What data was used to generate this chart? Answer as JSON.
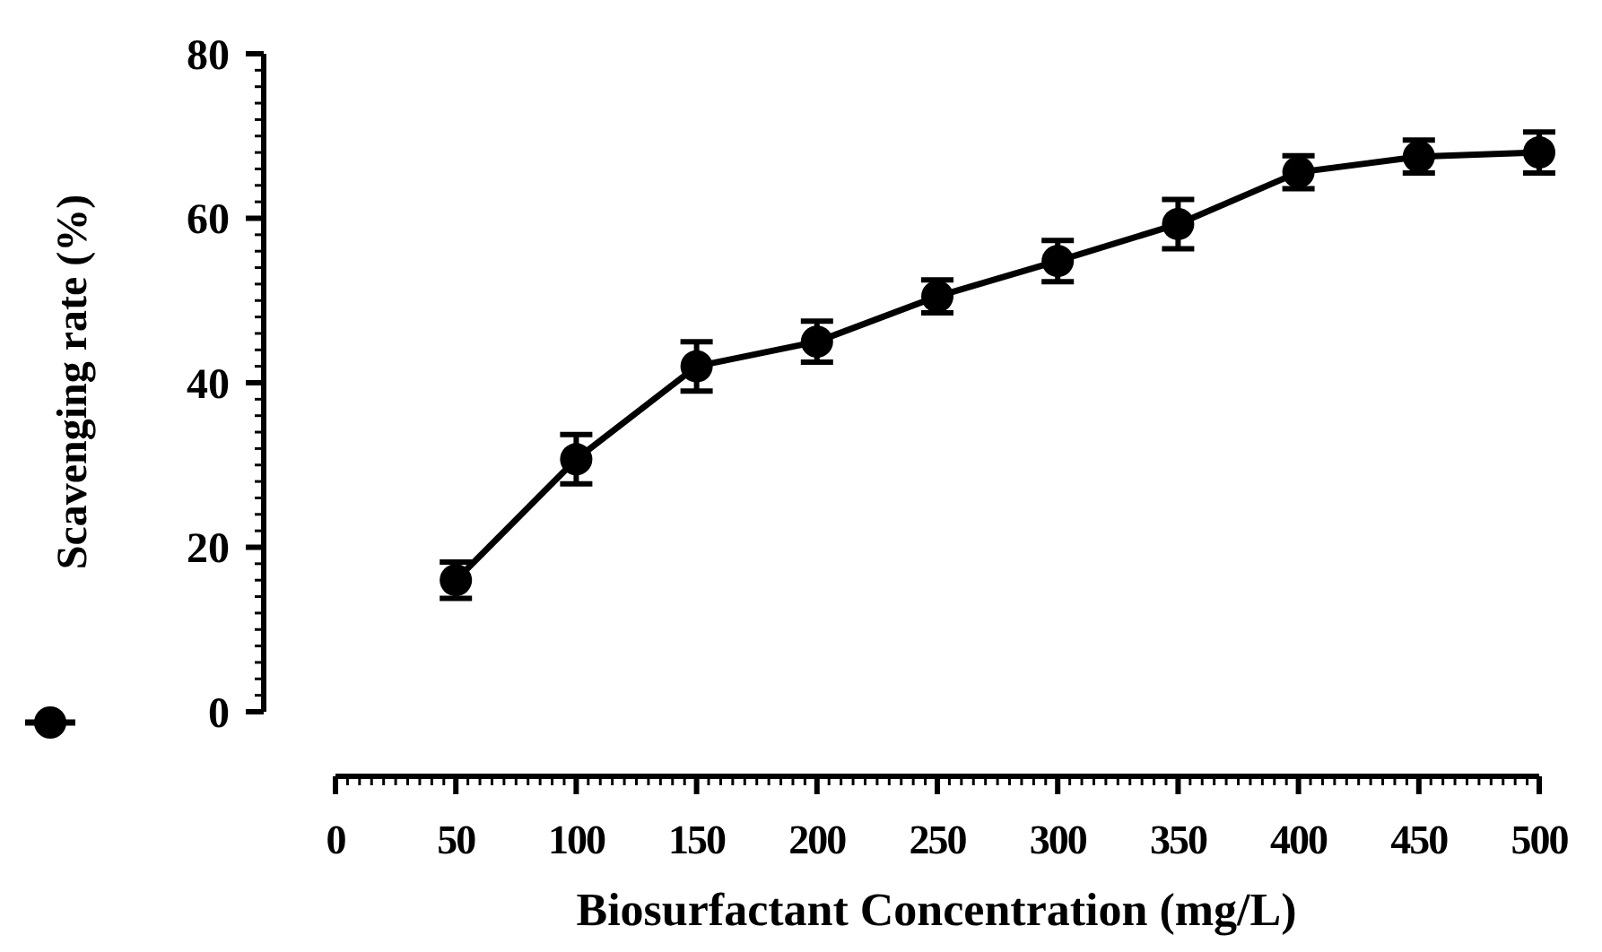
{
  "chart_data": {
    "type": "line",
    "xlabel": "Biosurfactant Concentration (mg/L)",
    "ylabel": "Scavenging rate (%)",
    "x": [
      50,
      100,
      150,
      200,
      250,
      300,
      350,
      400,
      450,
      500
    ],
    "series": [
      {
        "color": "#000000",
        "values": [
          16,
          30.7,
          42,
          45,
          50.5,
          54.8,
          59.3,
          65.6,
          67.5,
          68
        ],
        "errors": [
          2.2,
          3,
          3,
          2.5,
          2,
          2.5,
          3,
          2,
          2,
          2.5
        ]
      }
    ],
    "xlim": [
      0,
      500
    ],
    "xticks": [
      0,
      50,
      100,
      150,
      200,
      250,
      300,
      350,
      400,
      450,
      500
    ],
    "ylim": [
      0,
      80
    ],
    "yticks": [
      0,
      20,
      40,
      60,
      80
    ],
    "marker": "circle",
    "line_style": "solid",
    "grid": false
  }
}
